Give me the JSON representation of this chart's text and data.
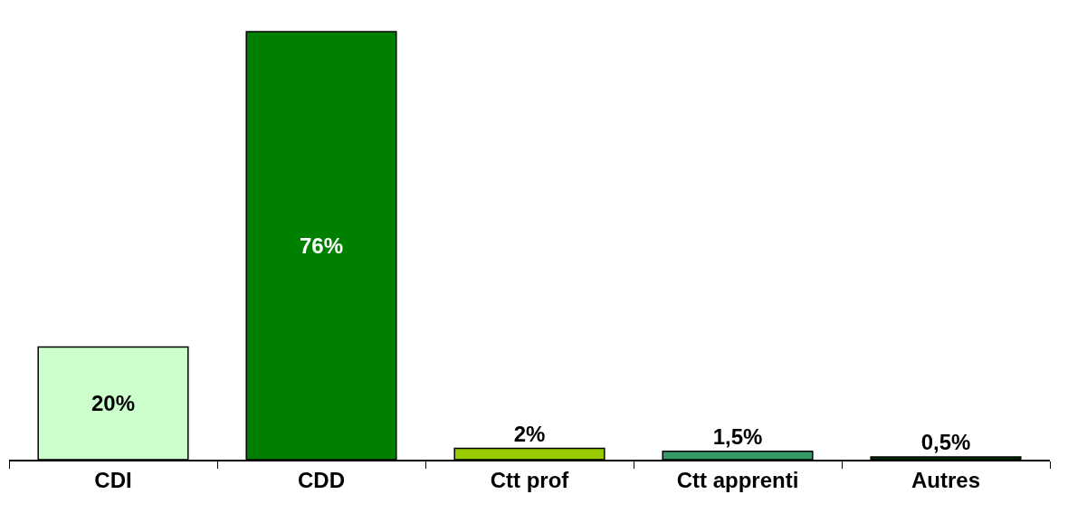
{
  "chart_data": {
    "type": "bar",
    "categories": [
      "CDI",
      "CDD",
      "Ctt prof",
      "Ctt apprenti",
      "Autres"
    ],
    "values": [
      20,
      76,
      2,
      1.5,
      0.5
    ],
    "colors": [
      "#ccffcc",
      "#008000",
      "#99cc00",
      "#339966",
      "#003300"
    ],
    "value_labels": [
      "20%",
      "76%",
      "2%",
      "1,5%",
      "0,5%"
    ],
    "data_labels": false
  }
}
